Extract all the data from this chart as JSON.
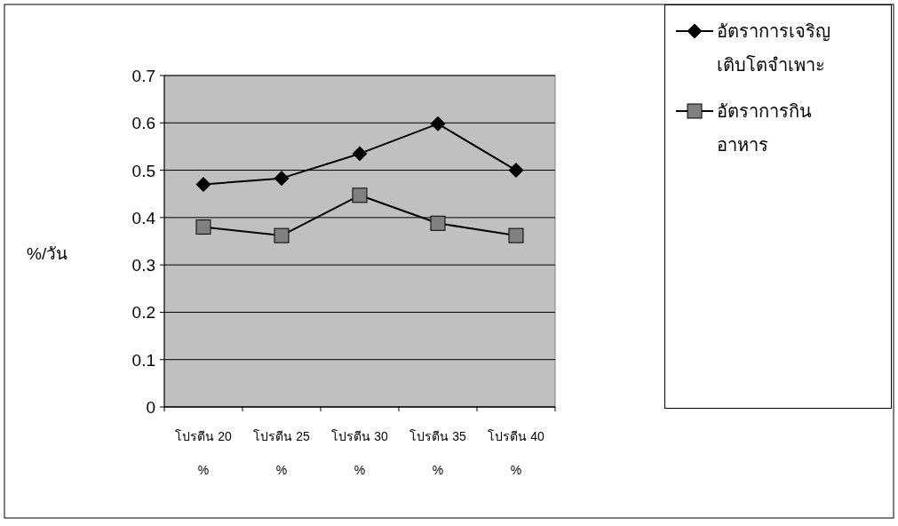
{
  "chart_data": {
    "type": "line",
    "ylabel": "%/วัน",
    "categories": [
      "โปรตีน 20 %",
      "โปรตีน 25 %",
      "โปรตีน 30 %",
      "โปรตีน 35 %",
      "โปรตีน 40 %"
    ],
    "series": [
      {
        "name": "อัตราการเจริญเติบโตจำเพาะ",
        "color": "#000000",
        "marker": "diamond",
        "values": [
          0.47,
          0.483,
          0.535,
          0.598,
          0.5
        ]
      },
      {
        "name": "อัตราการกินอาหาร",
        "color": "#808080",
        "marker": "square",
        "values": [
          0.38,
          0.362,
          0.447,
          0.388,
          0.362
        ]
      }
    ],
    "ylim": [
      0,
      0.7
    ],
    "yticks": [
      0,
      0.1,
      0.2,
      0.3,
      0.4,
      0.5,
      0.6,
      0.7
    ],
    "grid": "y",
    "legend": "right",
    "line_style": "solid"
  }
}
